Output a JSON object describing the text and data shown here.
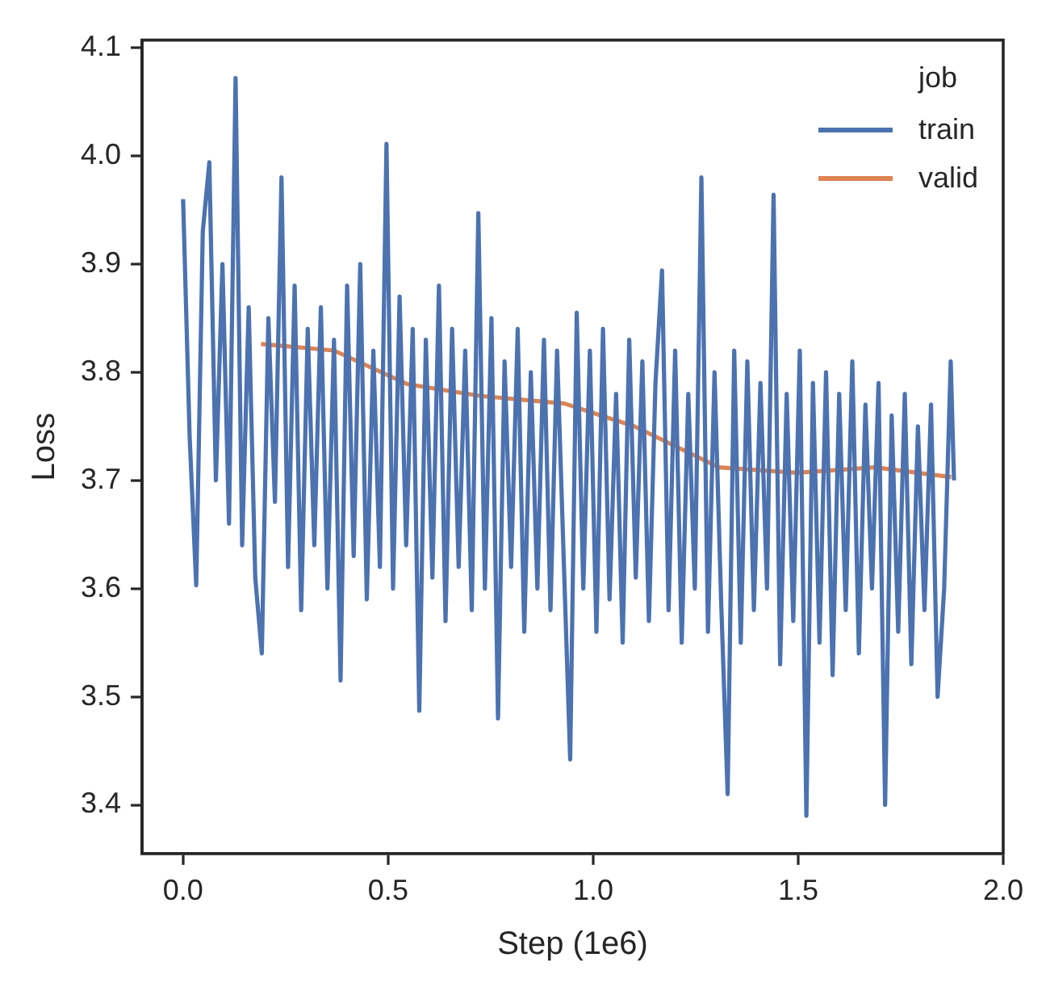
{
  "chart_data": {
    "type": "line",
    "xlabel": "Step (1e6)",
    "ylabel": "Loss",
    "legend_title": "job",
    "legend": "top right",
    "grid": false,
    "marker": "none",
    "line_style": "solid",
    "xlim": [
      -0.1,
      2.0
    ],
    "xticks": [
      {
        "value": 0,
        "label": "0.0"
      },
      {
        "value": 0.5,
        "label": "0.5"
      },
      {
        "value": 1,
        "label": "1.0"
      },
      {
        "value": 1.5,
        "label": "1.5"
      },
      {
        "value": 2,
        "label": "2.0"
      }
    ],
    "ylim": [
      3.355,
      4.107
    ],
    "yticks": [
      3.4,
      3.5,
      3.6,
      3.7,
      3.8,
      3.9,
      {
        "value": 4.0,
        "label": "4.0"
      },
      4.1
    ],
    "series": [
      {
        "name": "train",
        "color": "#4c72b0",
        "x": [
          0,
          0.016,
          0.032,
          0.048,
          0.064,
          0.08,
          0.096,
          0.112,
          0.128,
          0.144,
          0.16,
          0.176,
          0.192,
          0.208,
          0.224,
          0.24,
          0.256,
          0.272,
          0.288,
          0.304,
          0.32,
          0.336,
          0.352,
          0.368,
          0.384,
          0.4,
          0.416,
          0.432,
          0.448,
          0.464,
          0.48,
          0.496,
          0.512,
          0.528,
          0.544,
          0.56,
          0.576,
          0.592,
          0.608,
          0.624,
          0.64,
          0.656,
          0.672,
          0.688,
          0.704,
          0.72,
          0.736,
          0.752,
          0.768,
          0.784,
          0.8,
          0.816,
          0.832,
          0.848,
          0.864,
          0.88,
          0.896,
          0.912,
          0.928,
          0.944,
          0.96,
          0.976,
          0.992,
          1.008,
          1.024,
          1.04,
          1.056,
          1.072,
          1.088,
          1.104,
          1.12,
          1.136,
          1.152,
          1.168,
          1.184,
          1.2,
          1.216,
          1.232,
          1.248,
          1.264,
          1.28,
          1.296,
          1.312,
          1.328,
          1.344,
          1.36,
          1.376,
          1.392,
          1.408,
          1.424,
          1.44,
          1.456,
          1.472,
          1.488,
          1.504,
          1.52,
          1.536,
          1.552,
          1.568,
          1.584,
          1.6,
          1.616,
          1.632,
          1.648,
          1.664,
          1.68,
          1.696,
          1.712,
          1.728,
          1.744,
          1.76,
          1.776,
          1.792,
          1.808,
          1.824,
          1.84,
          1.856,
          1.872,
          1.88
        ],
        "values": [
          3.96,
          3.74,
          3.603,
          3.93,
          3.994,
          3.7,
          3.9,
          3.66,
          4.072,
          3.64,
          3.86,
          3.61,
          3.54,
          3.85,
          3.68,
          3.98,
          3.62,
          3.88,
          3.58,
          3.84,
          3.64,
          3.86,
          3.6,
          3.83,
          3.515,
          3.88,
          3.63,
          3.9,
          3.59,
          3.82,
          3.62,
          4.011,
          3.6,
          3.87,
          3.64,
          3.84,
          3.487,
          3.83,
          3.61,
          3.88,
          3.57,
          3.84,
          3.62,
          3.82,
          3.58,
          3.947,
          3.6,
          3.85,
          3.48,
          3.81,
          3.62,
          3.84,
          3.56,
          3.8,
          3.6,
          3.83,
          3.58,
          3.82,
          3.63,
          3.442,
          3.855,
          3.6,
          3.82,
          3.56,
          3.84,
          3.59,
          3.78,
          3.55,
          3.83,
          3.61,
          3.81,
          3.57,
          3.79,
          3.894,
          3.58,
          3.82,
          3.55,
          3.78,
          3.6,
          3.98,
          3.56,
          3.8,
          3.59,
          3.41,
          3.82,
          3.55,
          3.81,
          3.58,
          3.79,
          3.6,
          3.964,
          3.53,
          3.78,
          3.57,
          3.82,
          3.39,
          3.79,
          3.55,
          3.8,
          3.52,
          3.78,
          3.58,
          3.81,
          3.54,
          3.77,
          3.6,
          3.79,
          3.4,
          3.76,
          3.56,
          3.78,
          3.53,
          3.75,
          3.58,
          3.77,
          3.5,
          3.6,
          3.81,
          3.7
        ]
      },
      {
        "name": "valid",
        "color": "#dd8452",
        "x": [
          0.19,
          0.368,
          0.547,
          0.725,
          0.93,
          1.1,
          1.307,
          1.497,
          1.687,
          1.873
        ],
        "values": [
          3.826,
          3.82,
          3.789,
          3.778,
          3.771,
          3.75,
          3.712,
          3.707,
          3.712,
          3.703
        ]
      }
    ]
  }
}
